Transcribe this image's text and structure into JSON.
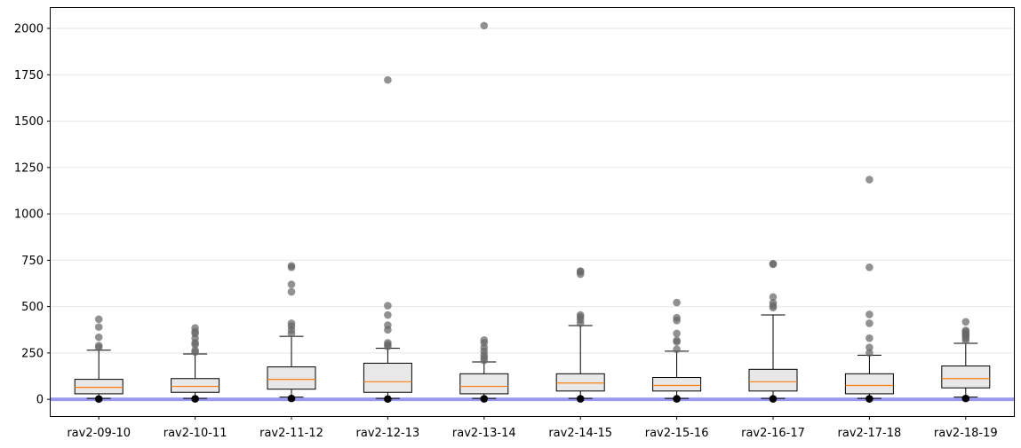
{
  "chart_data": {
    "type": "boxplot",
    "title": "",
    "xlabel": "",
    "ylabel": "",
    "categories": [
      "rav2-09-10",
      "rav2-10-11",
      "rav2-11-12",
      "rav2-12-13",
      "rav2-13-14",
      "rav2-14-15",
      "rav2-15-16",
      "rav2-16-17",
      "rav2-17-18",
      "rav2-18-19"
    ],
    "ylim": [
      -90,
      2110
    ],
    "yticks": [
      0,
      250,
      500,
      750,
      1000,
      1250,
      1500,
      1750,
      2000
    ],
    "yticklabels": [
      "0",
      "250",
      "500",
      "750",
      "1000",
      "1250",
      "1500",
      "1750",
      "2000"
    ],
    "grid": "horizontal",
    "reference_line": {
      "y": 0,
      "color": "#9999ee"
    },
    "colors": {
      "box_fill": "#e8e8e8",
      "median": "#ff7f0e",
      "outlier": "#666666",
      "minimum_marker": "#000000"
    },
    "boxes": [
      {
        "whisker_low": 5,
        "q1": 30,
        "median": 65,
        "q3": 108,
        "whisker_high": 265,
        "minimum": 2,
        "outliers": [
          280,
          290,
          335,
          390,
          432
        ]
      },
      {
        "whisker_low": 5,
        "q1": 38,
        "median": 70,
        "q3": 112,
        "whisker_high": 245,
        "minimum": 3,
        "outliers": [
          255,
          265,
          295,
          305,
          330,
          355,
          365,
          385
        ]
      },
      {
        "whisker_low": 12,
        "q1": 55,
        "median": 108,
        "q3": 175,
        "whisker_high": 340,
        "minimum": 5,
        "outliers": [
          355,
          375,
          395,
          410,
          580,
          620,
          712,
          720
        ]
      },
      {
        "whisker_low": 5,
        "q1": 38,
        "median": 95,
        "q3": 195,
        "whisker_high": 275,
        "minimum": 2,
        "outliers": [
          285,
          295,
          305,
          375,
          400,
          455,
          505,
          1722
        ]
      },
      {
        "whisker_low": 5,
        "q1": 30,
        "median": 70,
        "q3": 138,
        "whisker_high": 202,
        "minimum": 3,
        "outliers": [
          210,
          225,
          240,
          260,
          280,
          305,
          320,
          2015
        ]
      },
      {
        "whisker_low": 5,
        "q1": 45,
        "median": 88,
        "q3": 138,
        "whisker_high": 398,
        "minimum": 3,
        "outliers": [
          410,
          430,
          445,
          455,
          675,
          688,
          692
        ]
      },
      {
        "whisker_low": 5,
        "q1": 45,
        "median": 75,
        "q3": 118,
        "whisker_high": 260,
        "minimum": 3,
        "outliers": [
          270,
          310,
          318,
          355,
          425,
          440,
          522
        ]
      },
      {
        "whisker_low": 5,
        "q1": 45,
        "median": 95,
        "q3": 162,
        "whisker_high": 455,
        "minimum": 3,
        "outliers": [
          495,
          505,
          520,
          552,
          728,
          732
        ]
      },
      {
        "whisker_low": 5,
        "q1": 30,
        "median": 75,
        "q3": 138,
        "whisker_high": 238,
        "minimum": 3,
        "outliers": [
          250,
          280,
          330,
          410,
          458,
          712,
          1185
        ]
      },
      {
        "whisker_low": 12,
        "q1": 62,
        "median": 112,
        "q3": 180,
        "whisker_high": 302,
        "minimum": 5,
        "outliers": [
          318,
          330,
          340,
          348,
          355,
          365,
          372,
          418
        ]
      }
    ]
  }
}
